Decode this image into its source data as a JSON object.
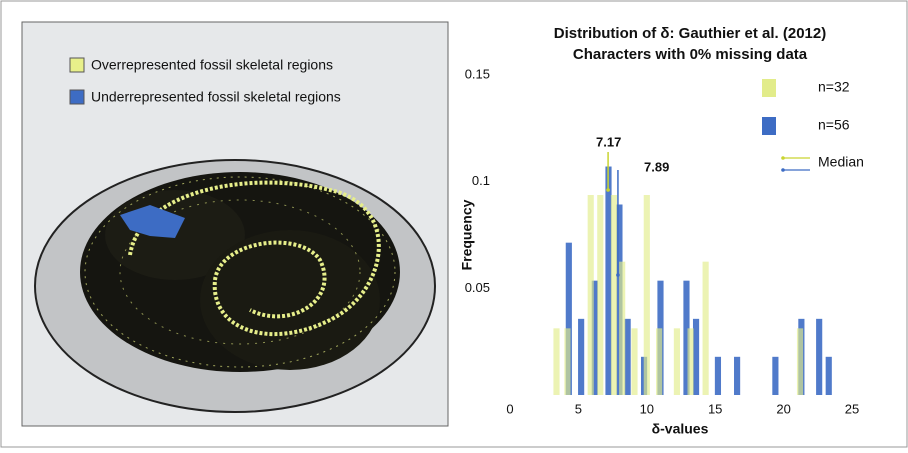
{
  "illustration": {
    "legend": [
      {
        "label": "Overrepresented fossil skeletal regions",
        "color": "#e8f08a"
      },
      {
        "label": "Underrepresented fossil skeletal regions",
        "color": "#3d6cc4"
      }
    ]
  },
  "chart_data": {
    "type": "bar",
    "title": "Distribution of δ: Gauthier et al. (2012)",
    "subtitle": "Characters with 0% missing data",
    "x_label": "δ-values",
    "y_label": "Frequency",
    "xlim": [
      0,
      25
    ],
    "xticks": [
      0,
      5,
      10,
      15,
      20,
      25
    ],
    "ylim": [
      0,
      0.15
    ],
    "yticks": [
      0.05,
      0.1,
      0.15
    ],
    "series": [
      {
        "name": "n=56",
        "color": "#3d6cc4",
        "x": [
          4.3,
          5.2,
          6.2,
          7.2,
          8.0,
          8.6,
          9.8,
          11.0,
          12.9,
          13.6,
          15.2,
          16.6,
          19.4,
          21.3,
          22.6,
          23.3
        ],
        "values": [
          0.0714,
          0.0357,
          0.0536,
          0.1071,
          0.0893,
          0.0357,
          0.0179,
          0.0536,
          0.0536,
          0.0357,
          0.0179,
          0.0179,
          0.0179,
          0.0357,
          0.0357,
          0.0179
        ]
      },
      {
        "name": "n=32",
        "color": "#e2ec8a",
        "x": [
          3.4,
          4.2,
          5.9,
          6.6,
          7.6,
          8.2,
          9.1,
          10.0,
          10.9,
          12.2,
          13.2,
          14.3,
          21.2
        ],
        "values": [
          0.03125,
          0.03125,
          0.09375,
          0.09375,
          0.09375,
          0.0625,
          0.03125,
          0.09375,
          0.03125,
          0.03125,
          0.03125,
          0.0625,
          0.03125
        ]
      }
    ],
    "median_label": "Median",
    "medians": [
      {
        "value": 7.17,
        "color": "#c9d430"
      },
      {
        "value": 7.89,
        "color": "#3d6cc4"
      }
    ]
  }
}
